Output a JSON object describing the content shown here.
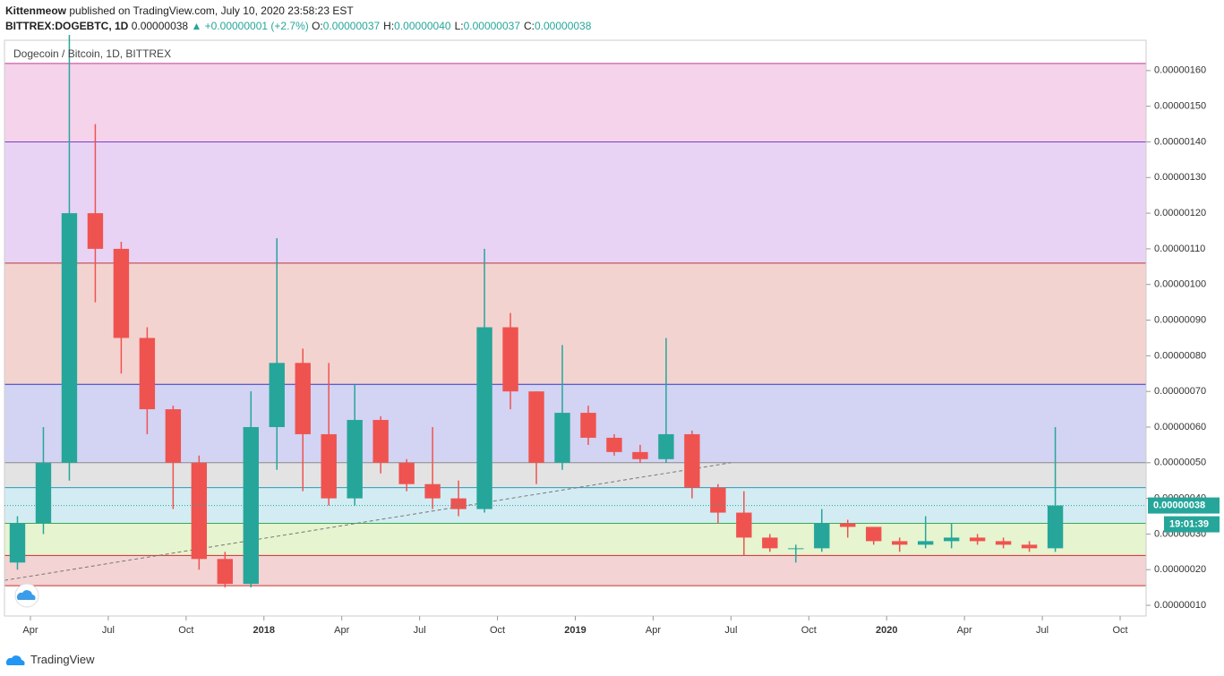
{
  "header": {
    "publisher": "Kittenmeow",
    "published": "published on TradingView.com, July 10, 2020 23:58:23 EST",
    "symbol": "BITTREX:DOGEBTC, 1D",
    "price": "0.00000038",
    "change": "▲ +0.00000001 (+2.7%)",
    "ohlc": [
      {
        "label": "O:",
        "value": "0.00000037"
      },
      {
        "label": "H:",
        "value": "0.00000040"
      },
      {
        "label": "L:",
        "value": "0.00000037"
      },
      {
        "label": "C:",
        "value": "0.00000038"
      }
    ]
  },
  "footer": {
    "brand": "TradingView"
  },
  "chart_data": {
    "type": "candlestick",
    "legend": "Dogecoin / Bitcoin, 1D, BITTREX",
    "up_color": "#26a69a",
    "down_color": "#ef5350",
    "x": [
      "2017-03",
      "2017-04",
      "2017-05",
      "2017-06",
      "2017-07",
      "2017-08",
      "2017-09",
      "2017-10",
      "2017-11",
      "2017-12",
      "2018-01",
      "2018-02",
      "2018-03",
      "2018-04",
      "2018-05",
      "2018-06",
      "2018-07",
      "2018-08",
      "2018-09",
      "2018-10",
      "2018-11",
      "2018-12",
      "2019-01",
      "2019-02",
      "2019-03",
      "2019-04",
      "2019-05",
      "2019-06",
      "2019-07",
      "2019-08",
      "2019-09",
      "2019-10",
      "2019-11",
      "2019-12",
      "2020-01",
      "2020-02",
      "2020-03",
      "2020-04",
      "2020-05",
      "2020-06",
      "2020-07"
    ],
    "open": [
      2.2e-07,
      3.3e-07,
      5e-07,
      1.2e-06,
      1.1e-06,
      8.5e-07,
      6.5e-07,
      5e-07,
      2.3e-07,
      1.6e-07,
      6e-07,
      7.8e-07,
      5.8e-07,
      4e-07,
      6.2e-07,
      5e-07,
      4.4e-07,
      4e-07,
      3.7e-07,
      8.8e-07,
      7e-07,
      5e-07,
      6.4e-07,
      5.7e-07,
      5.3e-07,
      5.1e-07,
      5.8e-07,
      4.3e-07,
      3.6e-07,
      2.9e-07,
      2.6e-07,
      2.6e-07,
      3.3e-07,
      3.2e-07,
      2.8e-07,
      2.7e-07,
      2.8e-07,
      2.9e-07,
      2.8e-07,
      2.7e-07,
      2.6e-07
    ],
    "high": [
      3.5e-07,
      6e-07,
      1.7e-06,
      1.45e-06,
      1.12e-06,
      8.8e-07,
      6.6e-07,
      5.2e-07,
      2.5e-07,
      7e-07,
      1.13e-06,
      8.2e-07,
      7.8e-07,
      7.2e-07,
      6.3e-07,
      5.1e-07,
      6e-07,
      4.5e-07,
      1.1e-06,
      9.2e-07,
      7e-07,
      8.3e-07,
      6.6e-07,
      5.8e-07,
      5.5e-07,
      8.5e-07,
      5.9e-07,
      4.4e-07,
      4.2e-07,
      3e-07,
      2.7e-07,
      3.7e-07,
      3.4e-07,
      3.2e-07,
      2.9e-07,
      3.5e-07,
      3.3e-07,
      3e-07,
      2.9e-07,
      2.8e-07,
      6e-07
    ],
    "low": [
      2e-07,
      3e-07,
      4.5e-07,
      9.5e-07,
      7.5e-07,
      5.8e-07,
      3.7e-07,
      2e-07,
      1.5e-07,
      1.5e-07,
      4.8e-07,
      4.2e-07,
      3.8e-07,
      3.8e-07,
      4.7e-07,
      4.2e-07,
      3.7e-07,
      3.5e-07,
      3.6e-07,
      6.5e-07,
      4.4e-07,
      4.8e-07,
      5.5e-07,
      5.2e-07,
      5e-07,
      5e-07,
      4e-07,
      3.3e-07,
      2.4e-07,
      2.5e-07,
      2.2e-07,
      2.5e-07,
      2.9e-07,
      2.7e-07,
      2.5e-07,
      2.6e-07,
      2.6e-07,
      2.7e-07,
      2.6e-07,
      2.5e-07,
      2.5e-07
    ],
    "close": [
      3.3e-07,
      5e-07,
      1.2e-06,
      1.1e-06,
      8.5e-07,
      6.5e-07,
      5e-07,
      2.3e-07,
      1.6e-07,
      6e-07,
      7.8e-07,
      5.8e-07,
      4e-07,
      6.2e-07,
      5e-07,
      4.4e-07,
      4e-07,
      3.7e-07,
      8.8e-07,
      7e-07,
      5e-07,
      6.4e-07,
      5.7e-07,
      5.3e-07,
      5.1e-07,
      5.8e-07,
      4.3e-07,
      3.6e-07,
      2.9e-07,
      2.6e-07,
      2.6e-07,
      3.3e-07,
      3.2e-07,
      2.8e-07,
      2.7e-07,
      2.8e-07,
      2.9e-07,
      2.8e-07,
      2.7e-07,
      2.6e-07,
      3.8e-07
    ],
    "xlim": [
      "2017-03",
      "2020-11"
    ],
    "xticks": [
      {
        "value": "2017-04",
        "label": "Apr"
      },
      {
        "value": "2017-07",
        "label": "Jul"
      },
      {
        "value": "2017-10",
        "label": "Oct"
      },
      {
        "value": "2018-01",
        "label": "2018"
      },
      {
        "value": "2018-04",
        "label": "Apr"
      },
      {
        "value": "2018-07",
        "label": "Jul"
      },
      {
        "value": "2018-10",
        "label": "Oct"
      },
      {
        "value": "2019-01",
        "label": "2019"
      },
      {
        "value": "2019-04",
        "label": "Apr"
      },
      {
        "value": "2019-07",
        "label": "Jul"
      },
      {
        "value": "2019-10",
        "label": "Oct"
      },
      {
        "value": "2020-01",
        "label": "2020"
      },
      {
        "value": "2020-04",
        "label": "Apr"
      },
      {
        "value": "2020-07",
        "label": "Jul"
      },
      {
        "value": "2020-10",
        "label": "Oct"
      }
    ],
    "ylim": [
      7e-08,
      1.685e-06
    ],
    "yticks": [
      {
        "value": 1e-07,
        "label": "0.00000010"
      },
      {
        "value": 2e-07,
        "label": "0.00000020"
      },
      {
        "value": 3e-07,
        "label": "0.00000030"
      },
      {
        "value": 4e-07,
        "label": "0.00000040"
      },
      {
        "value": 5e-07,
        "label": "0.00000050"
      },
      {
        "value": 6e-07,
        "label": "0.00000060"
      },
      {
        "value": 7e-07,
        "label": "0.00000070"
      },
      {
        "value": 8e-07,
        "label": "0.00000080"
      },
      {
        "value": 9e-07,
        "label": "0.00000090"
      },
      {
        "value": 1e-06,
        "label": "0.00000100"
      },
      {
        "value": 1.1e-06,
        "label": "0.00000110"
      },
      {
        "value": 1.2e-06,
        "label": "0.00000120"
      },
      {
        "value": 1.3e-06,
        "label": "0.00000130"
      },
      {
        "value": 1.4e-06,
        "label": "0.00000140"
      },
      {
        "value": 1.5e-06,
        "label": "0.00000150"
      },
      {
        "value": 1.6e-06,
        "label": "0.00000160"
      }
    ],
    "levels": [
      {
        "value": 1.62e-06,
        "color": "#c2389a"
      },
      {
        "value": 1.4e-06,
        "color": "#7a3fc8"
      },
      {
        "value": 1.06e-06,
        "color": "#b83a3a"
      },
      {
        "value": 7.2e-07,
        "color": "#3636c4"
      },
      {
        "value": 5e-07,
        "color": "#8a8a8a"
      },
      {
        "value": 4.3e-07,
        "color": "#2a9bb8"
      },
      {
        "value": 3.3e-07,
        "color": "#3aaa55"
      },
      {
        "value": 2.4e-07,
        "color": "#c83030"
      },
      {
        "value": 1.55e-07,
        "color": "#c83030"
      }
    ],
    "band_colors": [
      "#f5d3ea",
      "#e8d3f5",
      "#f3d3d0",
      "#d3d3f3",
      "#e3e3e3",
      "#d3ecf3",
      "#e6f4cf",
      "#f3d3d3"
    ],
    "trendline": {
      "x": [
        "2017-03",
        "2019-07"
      ],
      "values": [
        1.7e-07,
        5e-07
      ]
    },
    "last_price": {
      "value": 3.8e-07,
      "label": "0.00000038"
    },
    "countdown": "19:01:39"
  }
}
